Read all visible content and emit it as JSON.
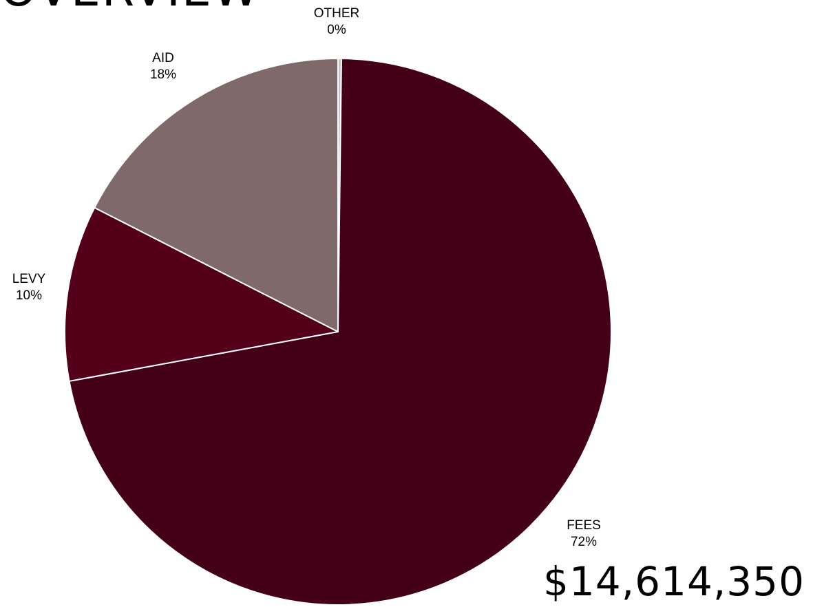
{
  "page": {
    "title": "OVERVIEW",
    "total": "$14,614,350"
  },
  "chart_data": {
    "type": "pie",
    "slices": [
      {
        "name": "OTHER",
        "pct_label": "0%",
        "value": 0.2,
        "color": "#c8c0c0"
      },
      {
        "name": "FEES",
        "pct_label": "72%",
        "value": 71.9,
        "color": "#440016"
      },
      {
        "name": "LEVY",
        "pct_label": "10%",
        "value": 10.4,
        "color": "#54001a"
      },
      {
        "name": "AID",
        "pct_label": "18%",
        "value": 17.5,
        "color": "#80696b"
      }
    ],
    "start": "12 o'clock",
    "direction": "clockwise",
    "legend": "none",
    "data_labels": "outside, category name and percentage"
  },
  "colors": {
    "slice_border": "#ffffff",
    "text": "#000000"
  }
}
